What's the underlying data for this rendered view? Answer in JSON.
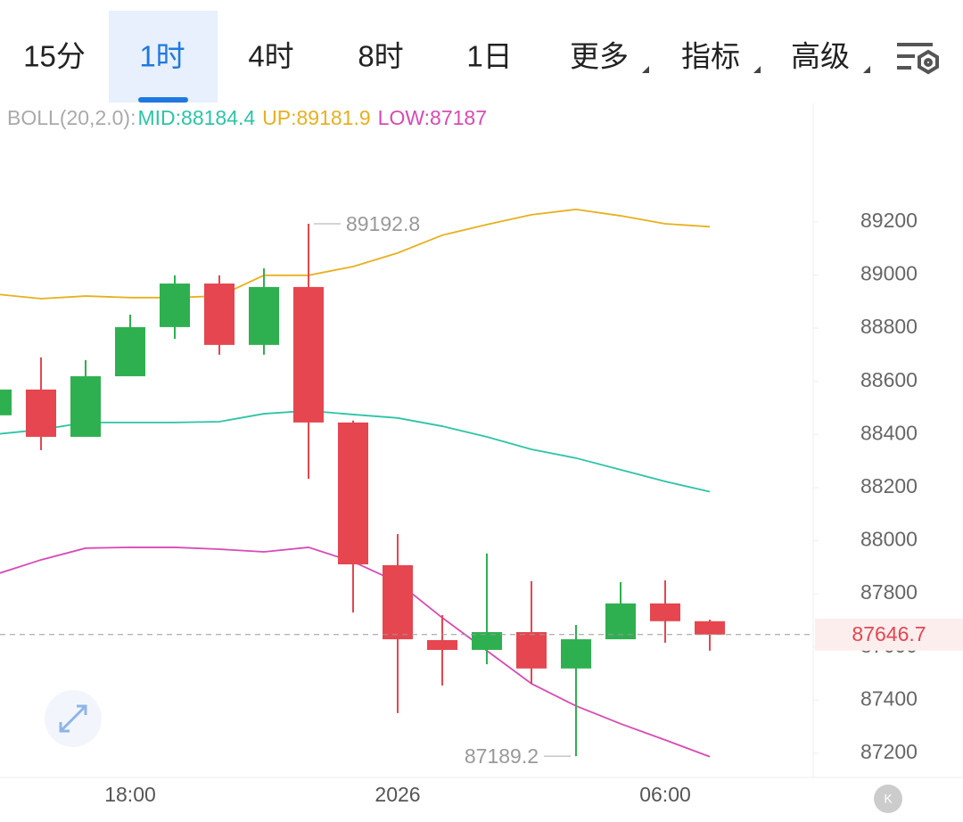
{
  "tabs": [
    "15分",
    "1时",
    "4时",
    "8时",
    "1日",
    "更多",
    "指标",
    "高级"
  ],
  "active_tab": 1,
  "chart_data": {
    "type": "candlestick",
    "indicator": "BOLL(20,2.0):",
    "categories": [
      null,
      null,
      null,
      "18:00",
      null,
      null,
      null,
      null,
      null,
      "2026",
      null,
      null,
      null,
      null,
      null,
      "06:00",
      null
    ],
    "open": [
      88472,
      88569,
      88391,
      88619,
      88804,
      88968,
      88737,
      88955,
      88445,
      87908,
      87626,
      87589,
      87656,
      87519,
      87629,
      87764,
      87697
    ],
    "high": [
      88580,
      88690,
      88680,
      88851,
      88999,
      88999,
      89025,
      89192.8,
      88452,
      88025,
      87720,
      87952,
      87848,
      87683,
      87844,
      87851,
      87703
    ],
    "low": [
      88460,
      88341,
      88391,
      88619,
      88760,
      88700,
      88700,
      88233,
      87730,
      87351,
      87455,
      87535,
      87462,
      87189.2,
      87629,
      87616,
      87586
    ],
    "close": [
      88569,
      88391,
      88619,
      88804,
      88968,
      88737,
      88955,
      88445,
      87911,
      87629,
      87589,
      87656,
      87519,
      87629,
      87764,
      87697,
      87646.7
    ],
    "up_color": "#2fb050",
    "down_color": "#e5464f",
    "series": [
      {
        "name": "MID:",
        "color": "#2cc4a6",
        "values": [
          88401,
          88418,
          88445,
          88445,
          88445,
          88448,
          88478,
          88489,
          88475,
          88462,
          88431,
          88391,
          88344,
          88311,
          88267,
          88223,
          88184.4
        ]
      },
      {
        "name": "UP:",
        "color": "#e8b01e",
        "values": [
          88928,
          88911,
          88921,
          88915,
          88915,
          88921,
          88999,
          88999,
          89032,
          89083,
          89150,
          89190,
          89227,
          89247,
          89223,
          89193,
          89181.9
        ]
      },
      {
        "name": "LOW:",
        "color": "#d84ab5",
        "values": [
          87874,
          87928,
          87972,
          87975,
          87975,
          87968,
          87958,
          87975,
          87921,
          87844,
          87710,
          87586,
          87462,
          87378,
          87311,
          87250,
          87187.0
        ]
      }
    ],
    "ylim": [
      87109,
      89646
    ],
    "yticks": [
      87200,
      87400,
      87600,
      87800,
      88000,
      88200,
      88400,
      88600,
      88800,
      89000,
      89200
    ]
  }
}
